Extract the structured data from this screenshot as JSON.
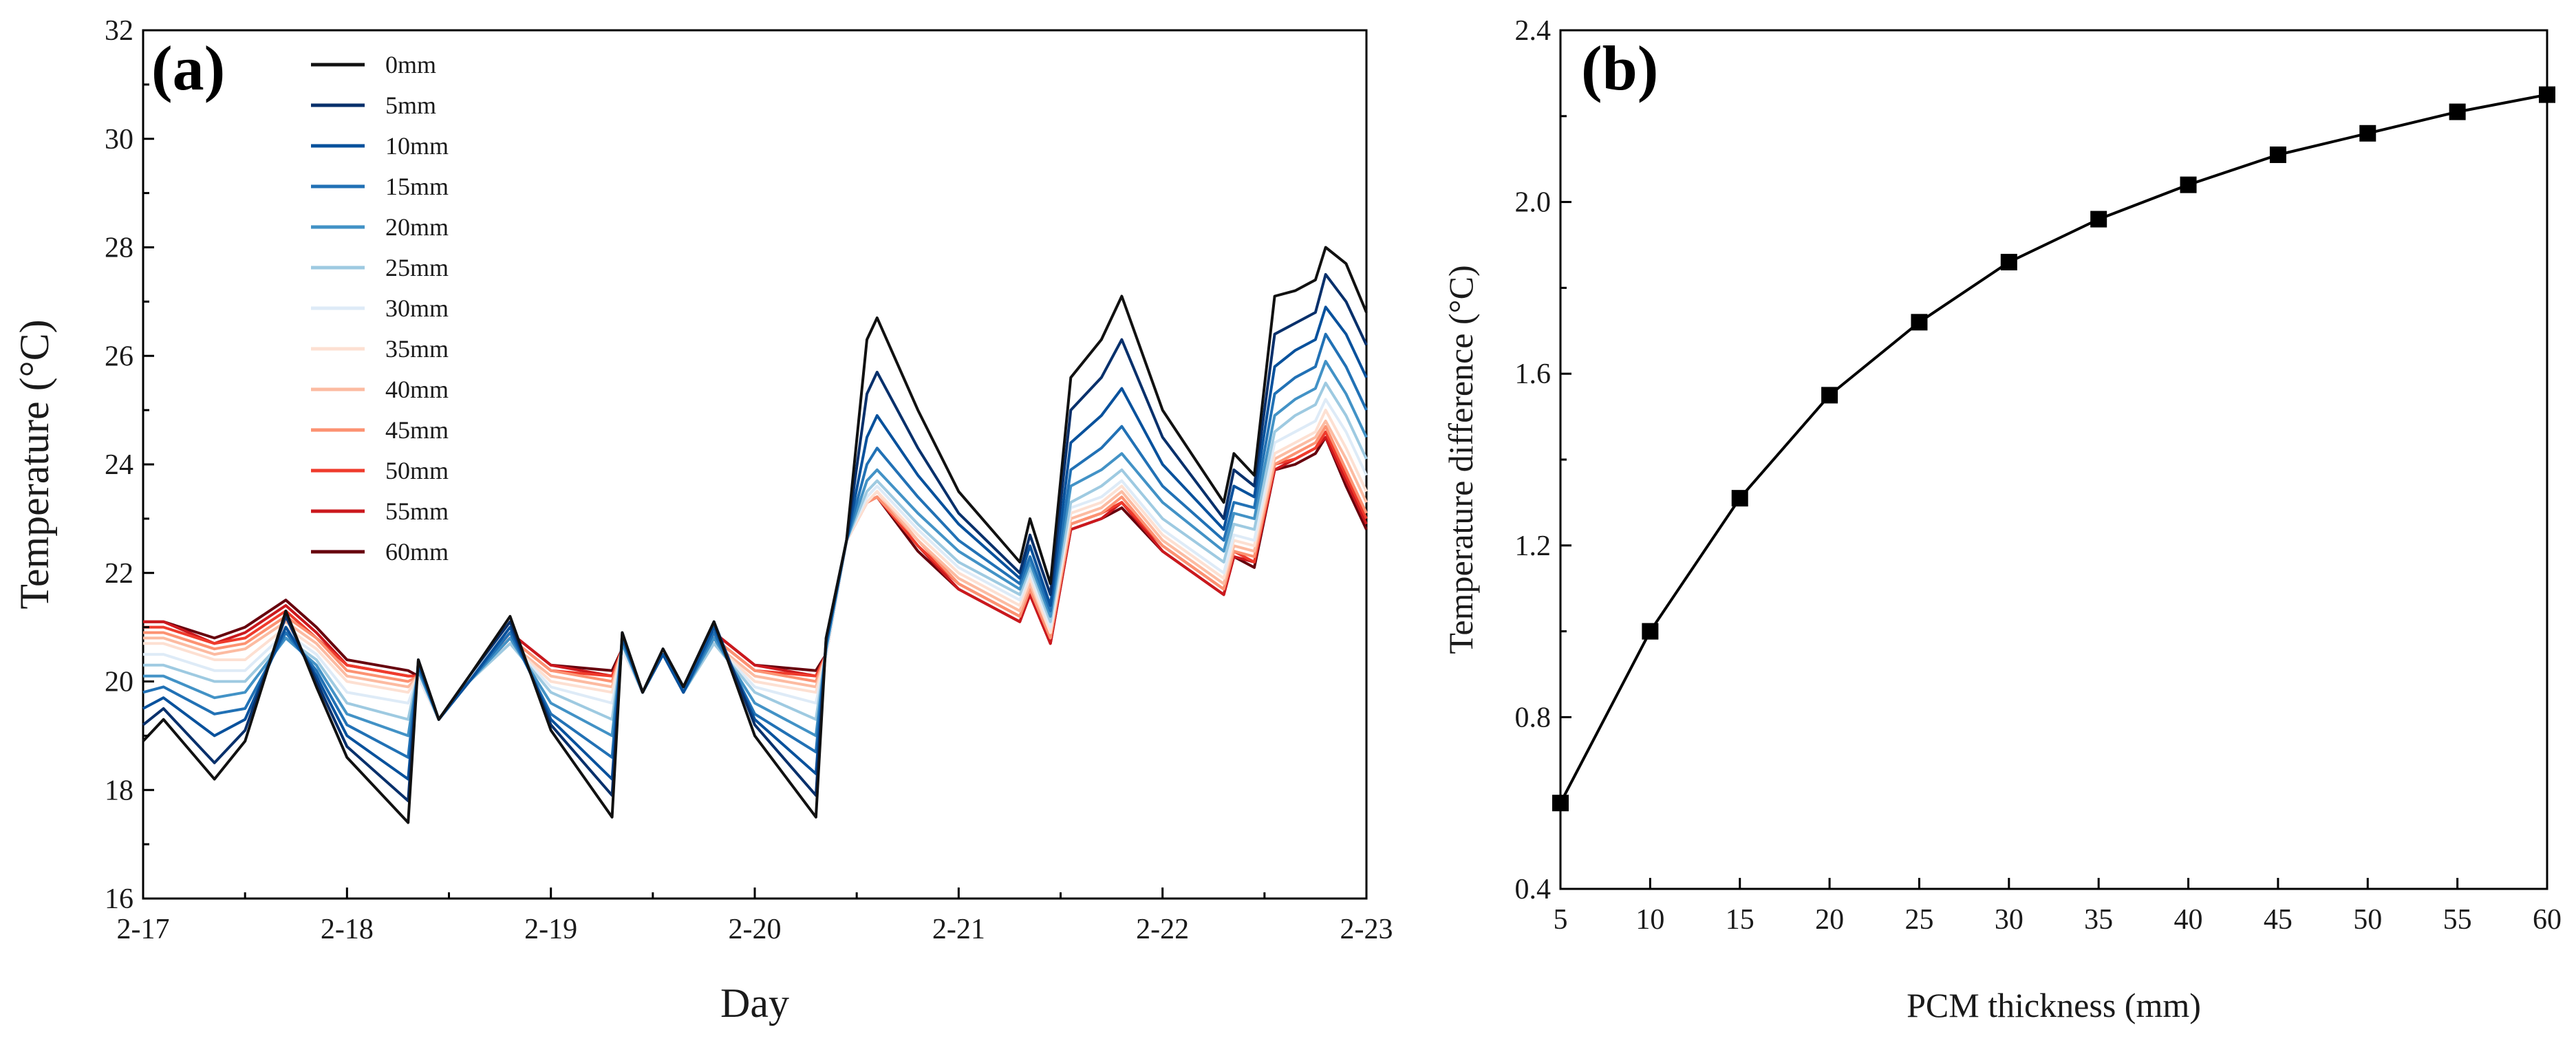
{
  "chart_data": [
    {
      "type": "line",
      "panel_label": "(a)",
      "xlabel": "Day",
      "ylabel": "Temperature (°C)",
      "xlim": [
        0,
        6
      ],
      "ylim": [
        16,
        32
      ],
      "x_ticks": [
        0,
        1,
        2,
        3,
        4,
        5,
        6
      ],
      "x_tick_labels": [
        "2-17",
        "2-18",
        "2-19",
        "2-20",
        "2-21",
        "2-22",
        "2-23"
      ],
      "y_ticks": [
        16,
        18,
        20,
        22,
        24,
        26,
        28,
        30,
        32
      ],
      "y_tick_labels": [
        "16",
        "18",
        "20",
        "22",
        "24",
        "26",
        "28",
        "30",
        "32"
      ],
      "x": [
        0,
        0.1,
        0.35,
        0.5,
        0.7,
        0.85,
        1.0,
        1.3,
        1.35,
        1.45,
        1.6,
        1.8,
        2.0,
        2.3,
        2.35,
        2.45,
        2.55,
        2.65,
        2.8,
        3.0,
        3.3,
        3.35,
        3.45,
        3.55,
        3.6,
        3.8,
        4.0,
        4.3,
        4.35,
        4.45,
        4.55,
        4.7,
        4.8,
        5.0,
        5.3,
        5.35,
        5.45,
        5.55,
        5.65,
        5.75,
        5.8,
        5.9,
        6.0
      ],
      "series": [
        {
          "name": "0mm",
          "color": "#111111",
          "values": [
            18.9,
            19.3,
            18.2,
            18.9,
            21.3,
            19.9,
            18.6,
            17.4,
            20.4,
            19.3,
            20.1,
            21.2,
            19.1,
            17.5,
            20.9,
            19.8,
            20.6,
            19.9,
            21.1,
            19.0,
            17.5,
            20.8,
            22.6,
            26.3,
            26.7,
            25.0,
            23.5,
            22.2,
            23.0,
            21.8,
            25.6,
            26.3,
            27.1,
            25.0,
            23.3,
            24.2,
            23.8,
            27.1,
            27.2,
            27.4,
            28.0,
            27.7,
            26.8
          ]
        },
        {
          "name": "5mm",
          "color": "#08306b",
          "values": [
            19.2,
            19.5,
            18.5,
            19.1,
            21.2,
            20.0,
            18.8,
            17.8,
            20.4,
            19.3,
            20.1,
            21.1,
            19.2,
            17.9,
            20.9,
            19.8,
            20.6,
            19.9,
            21.1,
            19.2,
            17.9,
            20.8,
            22.6,
            25.3,
            25.7,
            24.3,
            23.1,
            22.0,
            22.7,
            21.6,
            25.0,
            25.6,
            26.3,
            24.5,
            23.0,
            23.9,
            23.6,
            26.4,
            26.6,
            26.8,
            27.5,
            27.0,
            26.2
          ]
        },
        {
          "name": "10mm",
          "color": "#08519c",
          "values": [
            19.5,
            19.7,
            19.0,
            19.3,
            21.0,
            20.1,
            19.0,
            18.2,
            20.3,
            19.3,
            20.0,
            21.0,
            19.3,
            18.2,
            20.8,
            19.8,
            20.5,
            19.8,
            21.0,
            19.3,
            18.3,
            20.7,
            22.6,
            24.5,
            24.9,
            23.8,
            22.9,
            21.9,
            22.5,
            21.4,
            24.4,
            24.9,
            25.4,
            24.0,
            22.8,
            23.6,
            23.4,
            25.8,
            26.1,
            26.3,
            26.9,
            26.4,
            25.6
          ]
        },
        {
          "name": "15mm",
          "color": "#2171b5",
          "values": [
            19.8,
            19.9,
            19.4,
            19.5,
            20.9,
            20.2,
            19.2,
            18.6,
            20.3,
            19.3,
            20.0,
            20.9,
            19.4,
            18.6,
            20.8,
            19.8,
            20.5,
            19.8,
            20.9,
            19.4,
            18.7,
            20.7,
            22.6,
            24.0,
            24.3,
            23.4,
            22.6,
            21.8,
            22.3,
            21.3,
            23.9,
            24.3,
            24.7,
            23.6,
            22.6,
            23.3,
            23.2,
            25.3,
            25.6,
            25.8,
            26.4,
            25.8,
            25.0
          ]
        },
        {
          "name": "20mm",
          "color": "#4292c6",
          "values": [
            20.1,
            20.1,
            19.7,
            19.8,
            20.8,
            20.3,
            19.4,
            19.0,
            20.2,
            19.3,
            20.0,
            20.8,
            19.6,
            19.0,
            20.7,
            19.8,
            20.5,
            19.8,
            20.8,
            19.6,
            19.0,
            20.6,
            22.6,
            23.7,
            23.9,
            23.1,
            22.4,
            21.7,
            22.2,
            21.2,
            23.6,
            23.9,
            24.2,
            23.3,
            22.4,
            23.1,
            23.0,
            24.9,
            25.2,
            25.4,
            25.9,
            25.3,
            24.5
          ]
        },
        {
          "name": "25mm",
          "color": "#9ecae1",
          "values": [
            20.3,
            20.3,
            20.0,
            20.0,
            20.8,
            20.4,
            19.6,
            19.3,
            20.2,
            19.3,
            20.0,
            20.7,
            19.8,
            19.3,
            20.7,
            19.8,
            20.5,
            19.8,
            20.7,
            19.8,
            19.3,
            20.6,
            22.6,
            23.5,
            23.7,
            22.9,
            22.2,
            21.6,
            22.1,
            21.1,
            23.3,
            23.6,
            23.9,
            23.0,
            22.2,
            22.9,
            22.8,
            24.6,
            24.9,
            25.1,
            25.5,
            24.9,
            24.1
          ]
        },
        {
          "name": "30mm",
          "color": "#deebf7",
          "values": [
            20.5,
            20.5,
            20.2,
            20.2,
            20.9,
            20.5,
            19.8,
            19.6,
            20.1,
            19.3,
            20.0,
            20.7,
            19.9,
            19.6,
            20.6,
            19.8,
            20.5,
            19.8,
            20.7,
            19.9,
            19.6,
            20.5,
            22.6,
            23.4,
            23.6,
            22.8,
            22.1,
            21.5,
            22.0,
            21.0,
            23.2,
            23.4,
            23.7,
            22.8,
            22.0,
            22.7,
            22.6,
            24.4,
            24.6,
            24.8,
            25.2,
            24.6,
            23.8
          ]
        },
        {
          "name": "35mm",
          "color": "#fde0d2",
          "values": [
            20.7,
            20.7,
            20.4,
            20.4,
            21.0,
            20.6,
            20.0,
            19.8,
            20.1,
            19.3,
            20.0,
            20.7,
            20.0,
            19.8,
            20.6,
            19.8,
            20.5,
            19.8,
            20.7,
            20.0,
            19.8,
            20.5,
            22.6,
            23.3,
            23.5,
            22.7,
            22.0,
            21.4,
            21.9,
            20.9,
            23.1,
            23.3,
            23.6,
            22.7,
            21.9,
            22.6,
            22.5,
            24.2,
            24.4,
            24.6,
            25.0,
            24.3,
            23.5
          ]
        },
        {
          "name": "40mm",
          "color": "#fcbba1",
          "values": [
            20.8,
            20.8,
            20.5,
            20.6,
            21.1,
            20.7,
            20.1,
            19.9,
            20.1,
            19.3,
            20.0,
            20.7,
            20.1,
            19.9,
            20.6,
            19.8,
            20.5,
            19.8,
            20.7,
            20.1,
            19.9,
            20.5,
            22.6,
            23.3,
            23.5,
            22.6,
            21.9,
            21.3,
            21.8,
            20.9,
            23.0,
            23.2,
            23.5,
            22.6,
            21.8,
            22.5,
            22.4,
            24.1,
            24.3,
            24.5,
            24.8,
            24.1,
            23.3
          ]
        },
        {
          "name": "45mm",
          "color": "#fc9272",
          "values": [
            20.9,
            20.9,
            20.6,
            20.7,
            21.2,
            20.8,
            20.2,
            20.0,
            20.1,
            19.3,
            20.0,
            20.8,
            20.2,
            20.0,
            20.6,
            19.8,
            20.5,
            19.8,
            20.8,
            20.2,
            20.0,
            20.5,
            22.6,
            23.3,
            23.4,
            22.6,
            21.8,
            21.2,
            21.7,
            20.8,
            22.9,
            23.1,
            23.4,
            22.5,
            21.7,
            22.4,
            22.3,
            24.0,
            24.2,
            24.4,
            24.7,
            23.9,
            23.1
          ]
        },
        {
          "name": "50mm",
          "color": "#ef3b2c",
          "values": [
            21.0,
            21.0,
            20.7,
            20.8,
            21.3,
            20.8,
            20.3,
            20.1,
            20.1,
            19.3,
            20.0,
            20.8,
            20.2,
            20.1,
            20.6,
            19.8,
            20.5,
            19.8,
            20.8,
            20.2,
            20.1,
            20.5,
            22.6,
            23.3,
            23.4,
            22.5,
            21.8,
            21.2,
            21.7,
            20.8,
            22.9,
            23.1,
            23.3,
            22.5,
            21.7,
            22.4,
            22.2,
            24.0,
            24.1,
            24.3,
            24.6,
            23.8,
            23.0
          ]
        },
        {
          "name": "55mm",
          "color": "#cb181d",
          "values": [
            21.1,
            21.1,
            20.7,
            20.9,
            21.4,
            20.9,
            20.3,
            20.1,
            20.1,
            19.3,
            20.0,
            20.9,
            20.3,
            20.1,
            20.6,
            19.8,
            20.5,
            19.8,
            20.9,
            20.3,
            20.1,
            20.5,
            22.6,
            23.3,
            23.4,
            22.5,
            21.7,
            21.1,
            21.6,
            20.7,
            22.8,
            23.0,
            23.3,
            22.4,
            21.6,
            22.3,
            22.2,
            23.9,
            24.1,
            24.3,
            24.5,
            23.7,
            22.9
          ]
        },
        {
          "name": "60mm",
          "color": "#67000d",
          "values": [
            21.1,
            21.1,
            20.8,
            21.0,
            21.5,
            21.0,
            20.4,
            20.2,
            20.1,
            19.3,
            20.0,
            20.9,
            20.3,
            20.2,
            20.6,
            19.8,
            20.5,
            19.8,
            20.9,
            20.3,
            20.2,
            20.5,
            22.6,
            23.3,
            23.4,
            22.4,
            21.7,
            21.1,
            21.6,
            20.7,
            22.8,
            23.0,
            23.2,
            22.4,
            21.6,
            22.3,
            22.1,
            23.9,
            24.0,
            24.2,
            24.5,
            23.6,
            22.8
          ]
        }
      ],
      "legend_position": "top-left",
      "grid": false
    },
    {
      "type": "line",
      "panel_label": "(b)",
      "xlabel": "PCM thickness (mm)",
      "ylabel": "Temperature difference (°C)",
      "xlim": [
        5,
        60
      ],
      "ylim": [
        0.4,
        2.4
      ],
      "x_ticks": [
        5,
        10,
        15,
        20,
        25,
        30,
        35,
        40,
        45,
        50,
        55,
        60
      ],
      "x_tick_labels": [
        "5",
        "10",
        "15",
        "20",
        "25",
        "30",
        "35",
        "40",
        "45",
        "50",
        "55",
        "60"
      ],
      "y_ticks": [
        0.4,
        0.8,
        1.2,
        1.6,
        2.0,
        2.4
      ],
      "y_tick_labels": [
        "0.4",
        "0.8",
        "1.2",
        "1.6",
        "2.0",
        "2.4"
      ],
      "x": [
        5,
        10,
        15,
        20,
        25,
        30,
        35,
        40,
        45,
        50,
        55,
        60
      ],
      "values": [
        0.6,
        1.0,
        1.31,
        1.55,
        1.72,
        1.86,
        1.96,
        2.04,
        2.11,
        2.16,
        2.21,
        2.25
      ],
      "marker": "square",
      "color": "#000000",
      "grid": false
    }
  ]
}
